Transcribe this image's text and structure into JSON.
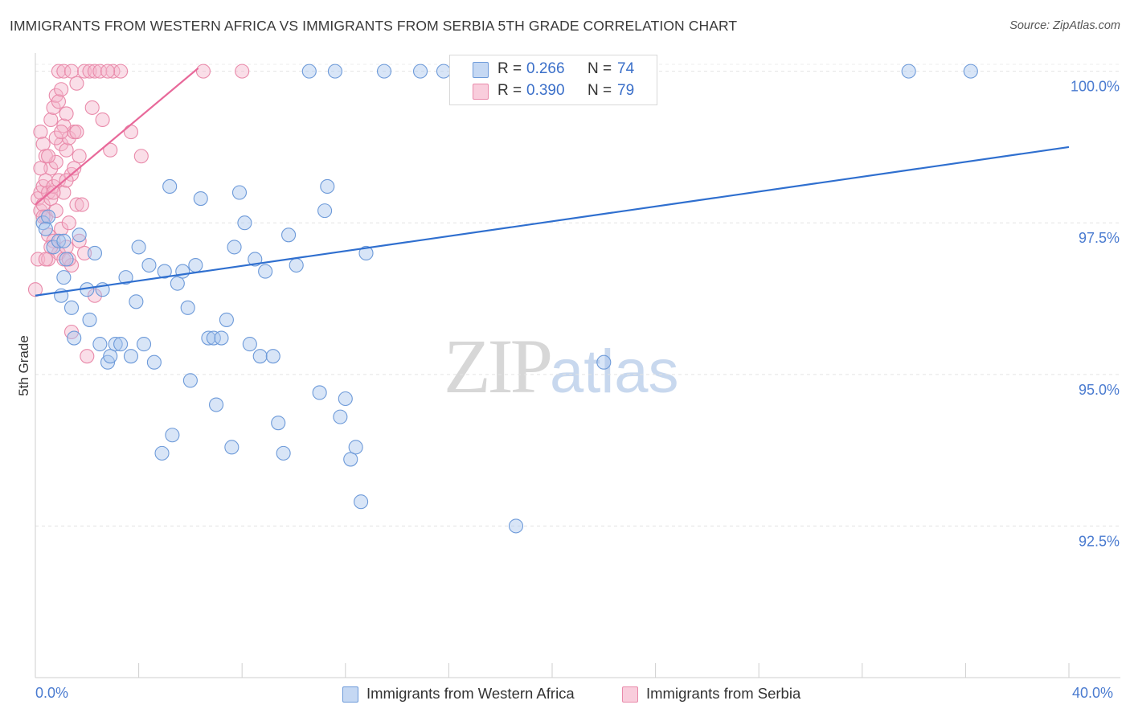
{
  "header": {
    "title": "IMMIGRANTS FROM WESTERN AFRICA VS IMMIGRANTS FROM SERBIA 5TH GRADE CORRELATION CHART",
    "source": "Source: ZipAtlas.com"
  },
  "watermark": {
    "zip": "ZIP",
    "atlas": "atlas"
  },
  "legend": {
    "r_label": "R =",
    "n_label": "N =",
    "rows": [
      {
        "r": "0.266",
        "n": "74"
      },
      {
        "r": "0.390",
        "n": "79"
      }
    ]
  },
  "colors": {
    "blue_fill": "#a9c6ee",
    "blue_stroke": "#6d9ad9",
    "blue_line": "#2f6fcf",
    "pink_fill": "#f4b6cb",
    "pink_stroke": "#e98aaa",
    "pink_line": "#e8699a",
    "tick_label": "#4a7bd0"
  },
  "chart_data": {
    "type": "scatter",
    "title": "IMMIGRANTS FROM WESTERN AFRICA VS IMMIGRANTS FROM SERBIA 5TH GRADE CORRELATION CHART",
    "xlabel": "",
    "ylabel": "5th Grade",
    "x_range": [
      0,
      40
    ],
    "y_range": [
      90.0,
      100.3
    ],
    "x_tick_labels": [
      "0.0%",
      "40.0%"
    ],
    "y_ticks": [
      92.5,
      95.0,
      97.5,
      100.0
    ],
    "y_tick_labels": [
      "92.5%",
      "95.0%",
      "97.5%",
      "100.0%"
    ],
    "series": [
      {
        "name": "Immigrants from Western Africa",
        "r": 0.266,
        "n": 74,
        "trend": {
          "x0": 0.0,
          "y0": 96.3,
          "x1": 40.0,
          "y1": 98.75
        },
        "points": [
          [
            0.3,
            97.5
          ],
          [
            0.5,
            97.6
          ],
          [
            0.7,
            97.1
          ],
          [
            0.9,
            97.2
          ],
          [
            1.1,
            96.6
          ],
          [
            1.2,
            96.9
          ],
          [
            1.4,
            96.1
          ],
          [
            1.7,
            97.3
          ],
          [
            2.0,
            96.4
          ],
          [
            2.1,
            95.9
          ],
          [
            2.3,
            97.0
          ],
          [
            2.5,
            95.5
          ],
          [
            2.6,
            96.4
          ],
          [
            2.8,
            95.2
          ],
          [
            2.9,
            95.3
          ],
          [
            3.1,
            95.5
          ],
          [
            3.3,
            95.5
          ],
          [
            3.5,
            96.6
          ],
          [
            3.7,
            95.3
          ],
          [
            3.9,
            96.2
          ],
          [
            4.0,
            97.1
          ],
          [
            4.2,
            95.5
          ],
          [
            4.4,
            96.8
          ],
          [
            4.6,
            95.2
          ],
          [
            5.0,
            96.7
          ],
          [
            5.2,
            98.1
          ],
          [
            5.5,
            96.5
          ],
          [
            5.7,
            96.7
          ],
          [
            5.9,
            96.1
          ],
          [
            6.0,
            94.9
          ],
          [
            6.2,
            96.8
          ],
          [
            6.4,
            97.9
          ],
          [
            6.7,
            95.6
          ],
          [
            6.9,
            95.6
          ],
          [
            7.0,
            94.5
          ],
          [
            7.2,
            95.6
          ],
          [
            7.4,
            95.9
          ],
          [
            7.6,
            93.8
          ],
          [
            7.7,
            97.1
          ],
          [
            7.9,
            98.0
          ],
          [
            8.1,
            97.5
          ],
          [
            8.3,
            95.5
          ],
          [
            8.5,
            96.9
          ],
          [
            8.7,
            95.3
          ],
          [
            8.9,
            96.7
          ],
          [
            9.2,
            95.3
          ],
          [
            9.4,
            94.2
          ],
          [
            9.6,
            93.7
          ],
          [
            9.8,
            97.3
          ],
          [
            10.1,
            96.8
          ],
          [
            10.6,
            100.0
          ],
          [
            11.0,
            94.7
          ],
          [
            11.2,
            97.7
          ],
          [
            11.3,
            98.1
          ],
          [
            11.6,
            100.0
          ],
          [
            11.8,
            94.3
          ],
          [
            12.0,
            94.6
          ],
          [
            12.2,
            93.6
          ],
          [
            12.4,
            93.8
          ],
          [
            12.6,
            92.9
          ],
          [
            12.8,
            97.0
          ],
          [
            13.5,
            100.0
          ],
          [
            14.9,
            100.0
          ],
          [
            15.8,
            100.0
          ],
          [
            18.6,
            92.5
          ],
          [
            22.0,
            95.2
          ],
          [
            33.8,
            100.0
          ],
          [
            36.2,
            100.0
          ],
          [
            4.9,
            93.7
          ],
          [
            5.3,
            94.0
          ],
          [
            1.0,
            96.3
          ],
          [
            1.5,
            95.6
          ],
          [
            0.4,
            97.4
          ],
          [
            1.1,
            97.2
          ]
        ]
      },
      {
        "name": "Immigrants from Serbia",
        "r": 0.39,
        "n": 79,
        "trend": {
          "x0": 0.0,
          "y0": 97.8,
          "x1": 6.3,
          "y1": 100.05
        },
        "points": [
          [
            0.1,
            97.9
          ],
          [
            0.2,
            98.0
          ],
          [
            0.2,
            97.7
          ],
          [
            0.3,
            98.1
          ],
          [
            0.3,
            97.8
          ],
          [
            0.4,
            98.2
          ],
          [
            0.4,
            97.6
          ],
          [
            0.5,
            98.0
          ],
          [
            0.5,
            97.3
          ],
          [
            0.6,
            98.4
          ],
          [
            0.6,
            97.9
          ],
          [
            0.7,
            98.1
          ],
          [
            0.7,
            97.2
          ],
          [
            0.8,
            98.5
          ],
          [
            0.8,
            97.7
          ],
          [
            0.9,
            98.2
          ],
          [
            0.9,
            97.0
          ],
          [
            1.0,
            98.8
          ],
          [
            1.0,
            97.4
          ],
          [
            1.1,
            98.0
          ],
          [
            1.1,
            96.9
          ],
          [
            1.2,
            98.7
          ],
          [
            1.2,
            97.1
          ],
          [
            1.3,
            98.9
          ],
          [
            1.3,
            97.5
          ],
          [
            1.4,
            98.3
          ],
          [
            1.4,
            96.8
          ],
          [
            1.5,
            99.0
          ],
          [
            1.6,
            97.8
          ],
          [
            1.7,
            98.6
          ],
          [
            1.7,
            97.2
          ],
          [
            0.2,
            99.0
          ],
          [
            0.3,
            98.8
          ],
          [
            0.4,
            98.6
          ],
          [
            0.6,
            99.2
          ],
          [
            0.7,
            99.4
          ],
          [
            0.8,
            99.6
          ],
          [
            0.9,
            99.5
          ],
          [
            1.0,
            99.7
          ],
          [
            1.1,
            99.1
          ],
          [
            1.2,
            99.3
          ],
          [
            1.6,
            99.0
          ],
          [
            2.2,
            99.4
          ],
          [
            2.3,
            96.3
          ],
          [
            2.6,
            99.2
          ],
          [
            2.9,
            98.7
          ],
          [
            0.9,
            100.0
          ],
          [
            1.1,
            100.0
          ],
          [
            1.4,
            100.0
          ],
          [
            1.9,
            100.0
          ],
          [
            2.1,
            100.0
          ],
          [
            2.3,
            100.0
          ],
          [
            2.5,
            100.0
          ],
          [
            3.0,
            100.0
          ],
          [
            3.3,
            100.0
          ],
          [
            3.7,
            99.0
          ],
          [
            4.1,
            98.6
          ],
          [
            6.5,
            100.0
          ],
          [
            8.0,
            100.0
          ],
          [
            0.0,
            96.4
          ],
          [
            0.1,
            96.9
          ],
          [
            0.3,
            97.6
          ],
          [
            0.5,
            96.9
          ],
          [
            1.3,
            96.9
          ],
          [
            1.9,
            97.0
          ],
          [
            2.0,
            95.3
          ],
          [
            1.4,
            95.7
          ],
          [
            0.2,
            98.4
          ],
          [
            0.5,
            98.6
          ],
          [
            0.8,
            98.9
          ],
          [
            1.2,
            98.2
          ],
          [
            1.5,
            98.4
          ],
          [
            1.8,
            97.8
          ],
          [
            0.6,
            97.1
          ],
          [
            0.4,
            96.9
          ],
          [
            1.0,
            99.0
          ],
          [
            0.7,
            98.0
          ],
          [
            1.6,
            99.8
          ],
          [
            2.8,
            100.0
          ]
        ]
      }
    ]
  },
  "bottom_legend": {
    "items": [
      "Immigrants from Western Africa",
      "Immigrants from Serbia"
    ]
  }
}
